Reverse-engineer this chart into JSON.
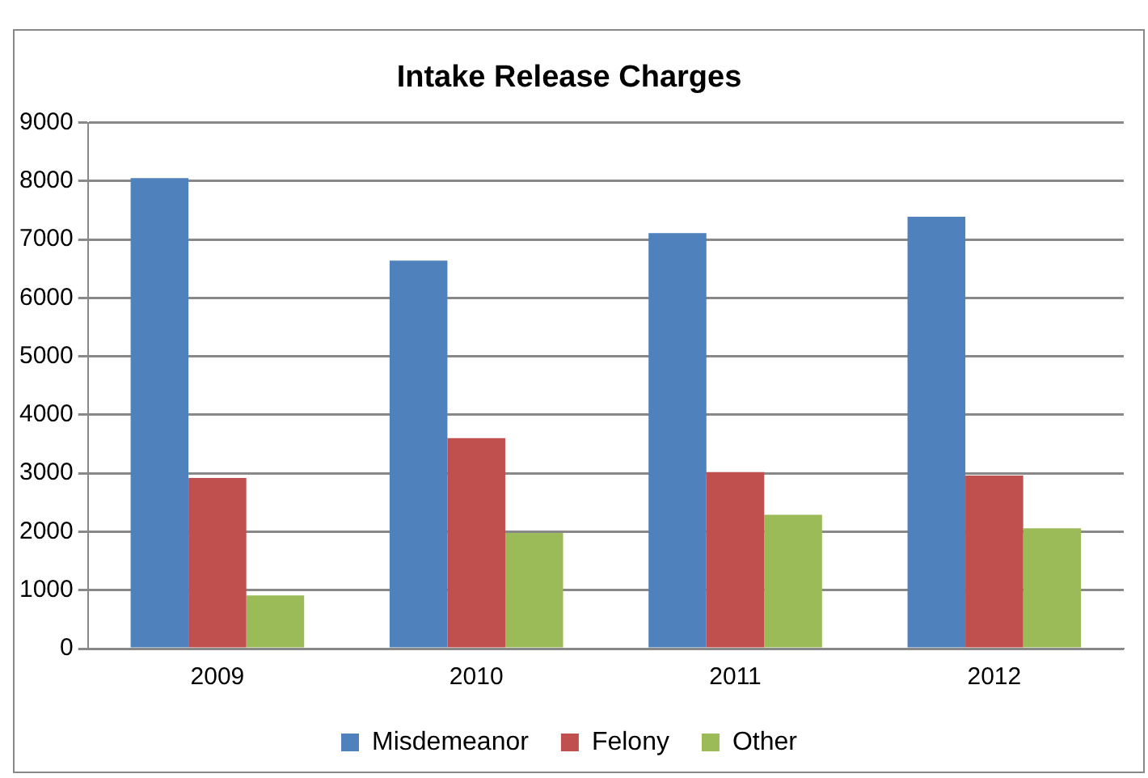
{
  "chart_data": {
    "type": "bar",
    "title": "Intake Release Charges",
    "categories": [
      "2009",
      "2010",
      "2011",
      "2012"
    ],
    "series": [
      {
        "name": "Misdemeanor",
        "color": "#4f81bd",
        "values": [
          8050,
          6640,
          7110,
          7390
        ]
      },
      {
        "name": "Felony",
        "color": "#c0504d",
        "values": [
          2920,
          3600,
          3020,
          2960
        ]
      },
      {
        "name": "Other",
        "color": "#9bbb59",
        "values": [
          910,
          1980,
          2290,
          2060
        ]
      }
    ],
    "ylim": [
      0,
      9000
    ],
    "yticks": [
      0,
      1000,
      2000,
      3000,
      4000,
      5000,
      6000,
      7000,
      8000,
      9000
    ],
    "grid": "y",
    "legend": "bottom"
  }
}
